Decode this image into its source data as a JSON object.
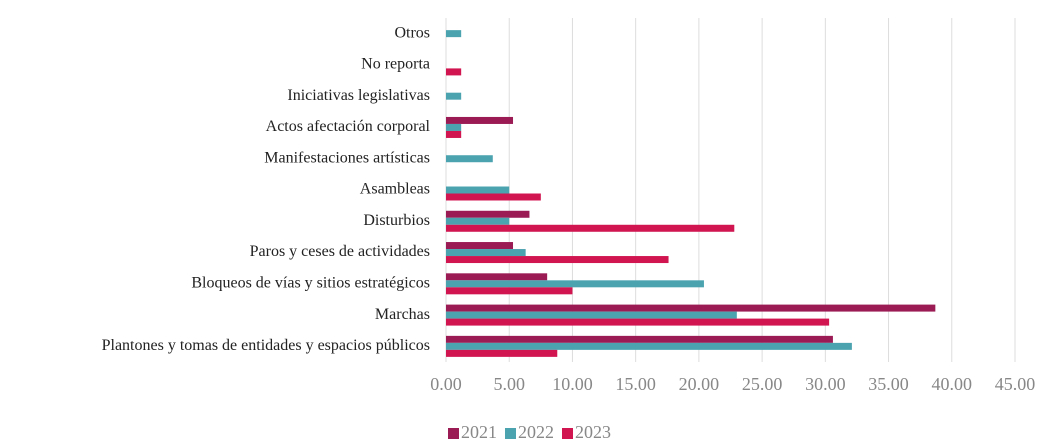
{
  "chart_data": {
    "type": "bar",
    "orientation": "horizontal",
    "categories": [
      "Otros",
      "No reporta",
      "Iniciativas legislativas",
      "Actos afectación corporal",
      "Manifestaciones artísticas",
      "Asambleas",
      "Disturbios",
      "Paros y ceses de actividades",
      "Bloqueos de vías y sitios estratégicos",
      "Marchas",
      "Plantones y tomas de entidades y espacios públicos"
    ],
    "series": [
      {
        "name": "2021",
        "color": "#9b1b55",
        "values": [
          null,
          null,
          null,
          5.3,
          null,
          null,
          6.6,
          5.3,
          8.0,
          38.7,
          30.6
        ]
      },
      {
        "name": "2022",
        "color": "#4ba3b0",
        "values": [
          1.2,
          null,
          1.2,
          1.2,
          3.7,
          5.0,
          5.0,
          6.3,
          20.4,
          23.0,
          32.1
        ]
      },
      {
        "name": "2023",
        "color": "#d01550",
        "values": [
          null,
          1.2,
          null,
          1.2,
          null,
          7.5,
          22.8,
          17.6,
          10.0,
          30.3,
          8.8
        ]
      }
    ],
    "xlim": [
      0,
      45
    ],
    "xticks": [
      {
        "value": 0,
        "label": "0.00"
      },
      {
        "value": 5,
        "label": "5.00"
      },
      {
        "value": 10,
        "label": "10.00"
      },
      {
        "value": 15,
        "label": "15.00"
      },
      {
        "value": 20,
        "label": "20.00"
      },
      {
        "value": 25,
        "label": "25.00"
      },
      {
        "value": 30,
        "label": "30.00"
      },
      {
        "value": 35,
        "label": "35.00"
      },
      {
        "value": 40,
        "label": "40.00"
      },
      {
        "value": 45,
        "label": "45.00"
      }
    ],
    "grid": true,
    "legend": "bottom"
  }
}
